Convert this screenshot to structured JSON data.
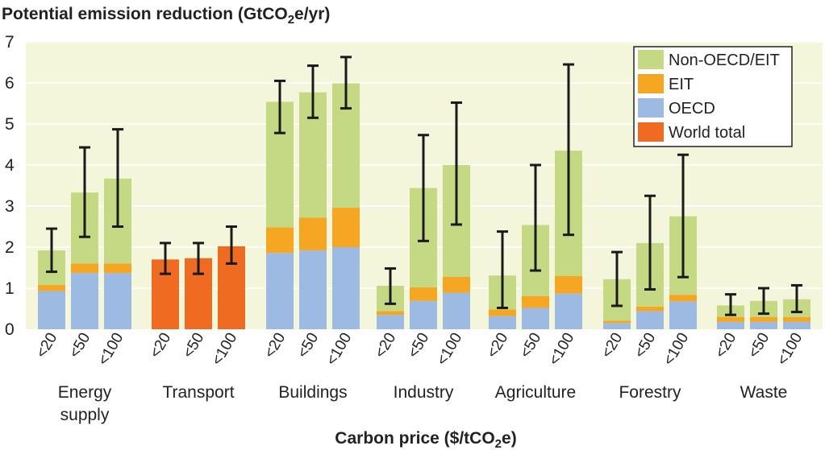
{
  "chart_data": {
    "type": "bar",
    "stacked": true,
    "title": "Potential emission reduction (GtCO₂e/yr)",
    "title_parts": {
      "pre": "Potential emission reduction (GtCO",
      "sub": "2",
      "post": "e/yr)"
    },
    "xlabel": "Carbon price ($/tCO₂e)",
    "xlabel_parts": {
      "pre": "Carbon price ($/tCO",
      "sub": "2",
      "post": "e)"
    },
    "ylim": [
      0,
      7
    ],
    "yticks": [
      "0",
      "1",
      "2",
      "3",
      "4",
      "5",
      "6",
      "7"
    ],
    "grid": true,
    "legend_position": "top-right",
    "legend": [
      {
        "name": "Non-OECD/EIT",
        "color": "#c5d985"
      },
      {
        "name": "EIT",
        "color": "#f5a623"
      },
      {
        "name": "OECD",
        "color": "#9dbbe2"
      },
      {
        "name": "World total",
        "color": "#f06b22"
      }
    ],
    "price_labels": [
      "<20",
      "<50",
      "<100"
    ],
    "categories": [
      {
        "label_lines": [
          "Energy",
          "supply"
        ],
        "bars": [
          {
            "oecd": 0.93,
            "eit": 0.15,
            "non_oecd": 0.84,
            "err": [
              1.4,
              2.45
            ]
          },
          {
            "oecd": 1.37,
            "eit": 0.23,
            "non_oecd": 1.73,
            "err": [
              2.25,
              4.43
            ]
          },
          {
            "oecd": 1.37,
            "eit": 0.23,
            "non_oecd": 2.07,
            "err": [
              2.5,
              4.87
            ]
          }
        ]
      },
      {
        "label_lines": [
          "Transport"
        ],
        "bars": [
          {
            "world": 1.7,
            "err": [
              1.35,
              2.1
            ]
          },
          {
            "world": 1.73,
            "err": [
              1.35,
              2.1
            ]
          },
          {
            "world": 2.02,
            "err": [
              1.6,
              2.5
            ]
          }
        ]
      },
      {
        "label_lines": [
          "Buildings"
        ],
        "bars": [
          {
            "oecd": 1.86,
            "eit": 0.62,
            "non_oecd": 3.06,
            "err": [
              4.78,
              6.05
            ]
          },
          {
            "oecd": 1.92,
            "eit": 0.8,
            "non_oecd": 3.05,
            "err": [
              5.15,
              6.42
            ]
          },
          {
            "oecd": 2.0,
            "eit": 0.96,
            "non_oecd": 3.03,
            "err": [
              5.38,
              6.63
            ]
          }
        ]
      },
      {
        "label_lines": [
          "Industry"
        ],
        "bars": [
          {
            "oecd": 0.35,
            "eit": 0.09,
            "non_oecd": 0.62,
            "err": [
              0.62,
              1.48
            ]
          },
          {
            "oecd": 0.69,
            "eit": 0.33,
            "non_oecd": 2.42,
            "err": [
              2.15,
              4.73
            ]
          },
          {
            "oecd": 0.89,
            "eit": 0.39,
            "non_oecd": 2.72,
            "err": [
              2.55,
              5.52
            ]
          }
        ]
      },
      {
        "label_lines": [
          "Agriculture"
        ],
        "bars": [
          {
            "oecd": 0.32,
            "eit": 0.16,
            "non_oecd": 0.83,
            "err": [
              0.52,
              2.38
            ]
          },
          {
            "oecd": 0.52,
            "eit": 0.29,
            "non_oecd": 1.73,
            "err": [
              1.43,
              4.0
            ]
          },
          {
            "oecd": 0.87,
            "eit": 0.43,
            "non_oecd": 3.05,
            "err": [
              2.3,
              6.45
            ]
          }
        ]
      },
      {
        "label_lines": [
          "Forestry"
        ],
        "bars": [
          {
            "oecd": 0.15,
            "eit": 0.06,
            "non_oecd": 1.01,
            "err": [
              0.57,
              1.88
            ]
          },
          {
            "oecd": 0.44,
            "eit": 0.11,
            "non_oecd": 1.55,
            "err": [
              0.97,
              3.25
            ]
          },
          {
            "oecd": 0.68,
            "eit": 0.16,
            "non_oecd": 1.91,
            "err": [
              1.27,
              4.25
            ]
          }
        ]
      },
      {
        "label_lines": [
          "Waste"
        ],
        "bars": [
          {
            "oecd": 0.18,
            "eit": 0.12,
            "non_oecd": 0.28,
            "err": [
              0.35,
              0.85
            ]
          },
          {
            "oecd": 0.18,
            "eit": 0.12,
            "non_oecd": 0.39,
            "err": [
              0.38,
              1.0
            ]
          },
          {
            "oecd": 0.18,
            "eit": 0.12,
            "non_oecd": 0.43,
            "err": [
              0.42,
              1.07
            ]
          }
        ]
      }
    ]
  }
}
